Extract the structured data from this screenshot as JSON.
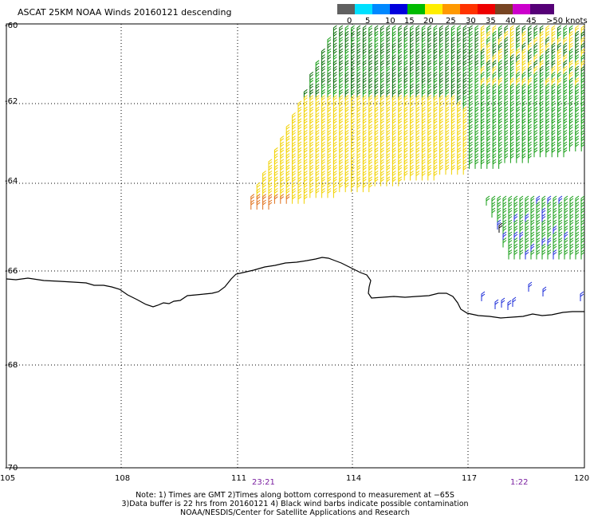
{
  "title": "ASCAT 25KM NOAA Winds 20160121 descending",
  "legend": {
    "labels": [
      "0",
      "5",
      "10",
      "15",
      "20",
      "25",
      "30",
      "35",
      "40",
      "45",
      ">50 knots"
    ],
    "colors": [
      "#606060",
      "#00e0ff",
      "#0088ff",
      "#0000dd",
      "#00bb00",
      "#ffee00",
      "#ff9900",
      "#ff3300",
      "#ee0000",
      "#774422",
      "#cc00cc",
      "#550077"
    ]
  },
  "axes": {
    "lat_labels": [
      "-60",
      "-62",
      "-64",
      "-66",
      "-68",
      "-70"
    ],
    "lon_labels": [
      "105",
      "108",
      "111",
      "114",
      "117",
      "120"
    ]
  },
  "times": [
    "23:21",
    "1:22"
  ],
  "notes": {
    "line1": "Note: 1) Times are GMT 2)Times along bottom correspond to measurement at −65S",
    "line2": "3)Data buffer is 22 hrs from 20160121 4) Black wind barbs indicate possible contamination",
    "line3": "NOAA/NESDIS/Center for Satellite Applications and Research"
  },
  "barb_colors": {
    "yellow": "#f2d200",
    "green": "#139c13",
    "dark_green": "#0a6e0a",
    "orange": "#e0701a",
    "blue": "#1a2ad8",
    "black": "#000000"
  }
}
